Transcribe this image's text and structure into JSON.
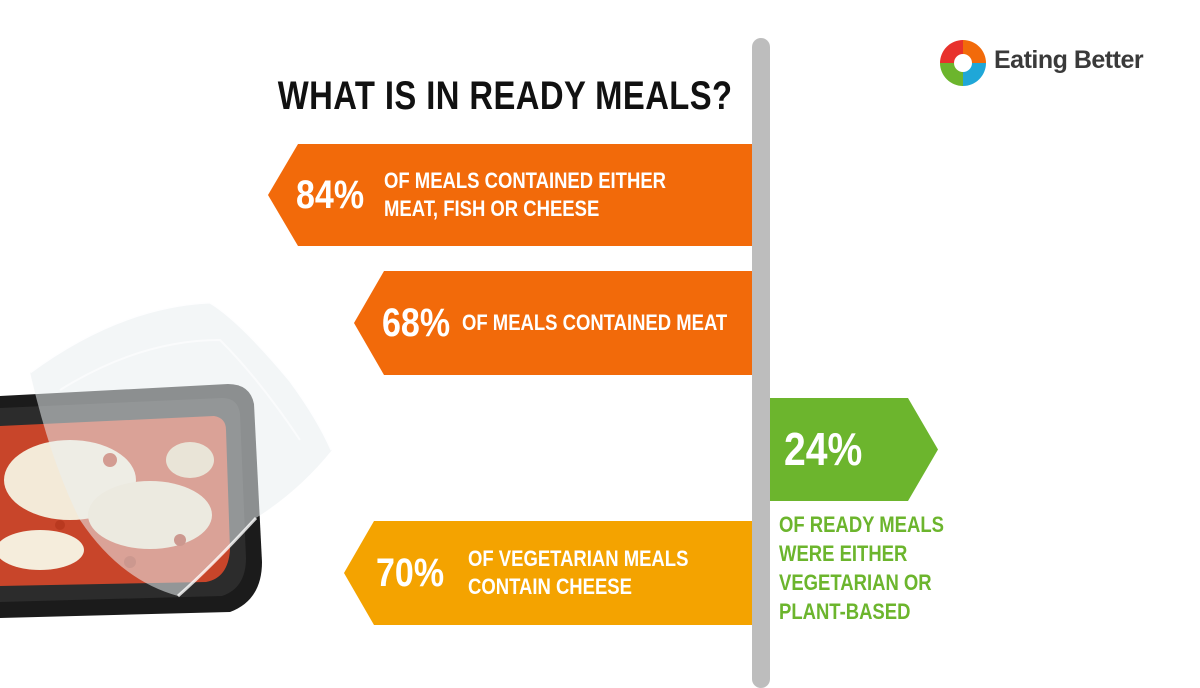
{
  "brand": {
    "name": "Eating Better",
    "colors": {
      "orange": "#f26a0a",
      "amber": "#f4a300",
      "green": "#6cb52d",
      "divider": "#bdbdbd"
    }
  },
  "title": "WHAT IS IN READY MEALS?",
  "stats": [
    {
      "percent": "84%",
      "lines": [
        "OF MEALS CONTAINED EITHER",
        "MEAT, FISH OR CHEESE"
      ]
    },
    {
      "percent": "68%",
      "lines": [
        "OF MEALS CONTAINED MEAT"
      ]
    },
    {
      "percent": "70%",
      "lines": [
        "OF VEGETARIAN MEALS",
        "CONTAIN CHEESE"
      ]
    }
  ],
  "highlight": {
    "percent": "24%",
    "lines": [
      "OF READY MEALS",
      "WERE EITHER",
      "VEGETARIAN OR",
      "PLANT-BASED"
    ]
  },
  "image": {
    "icon": "ready-meal-tray-icon"
  }
}
